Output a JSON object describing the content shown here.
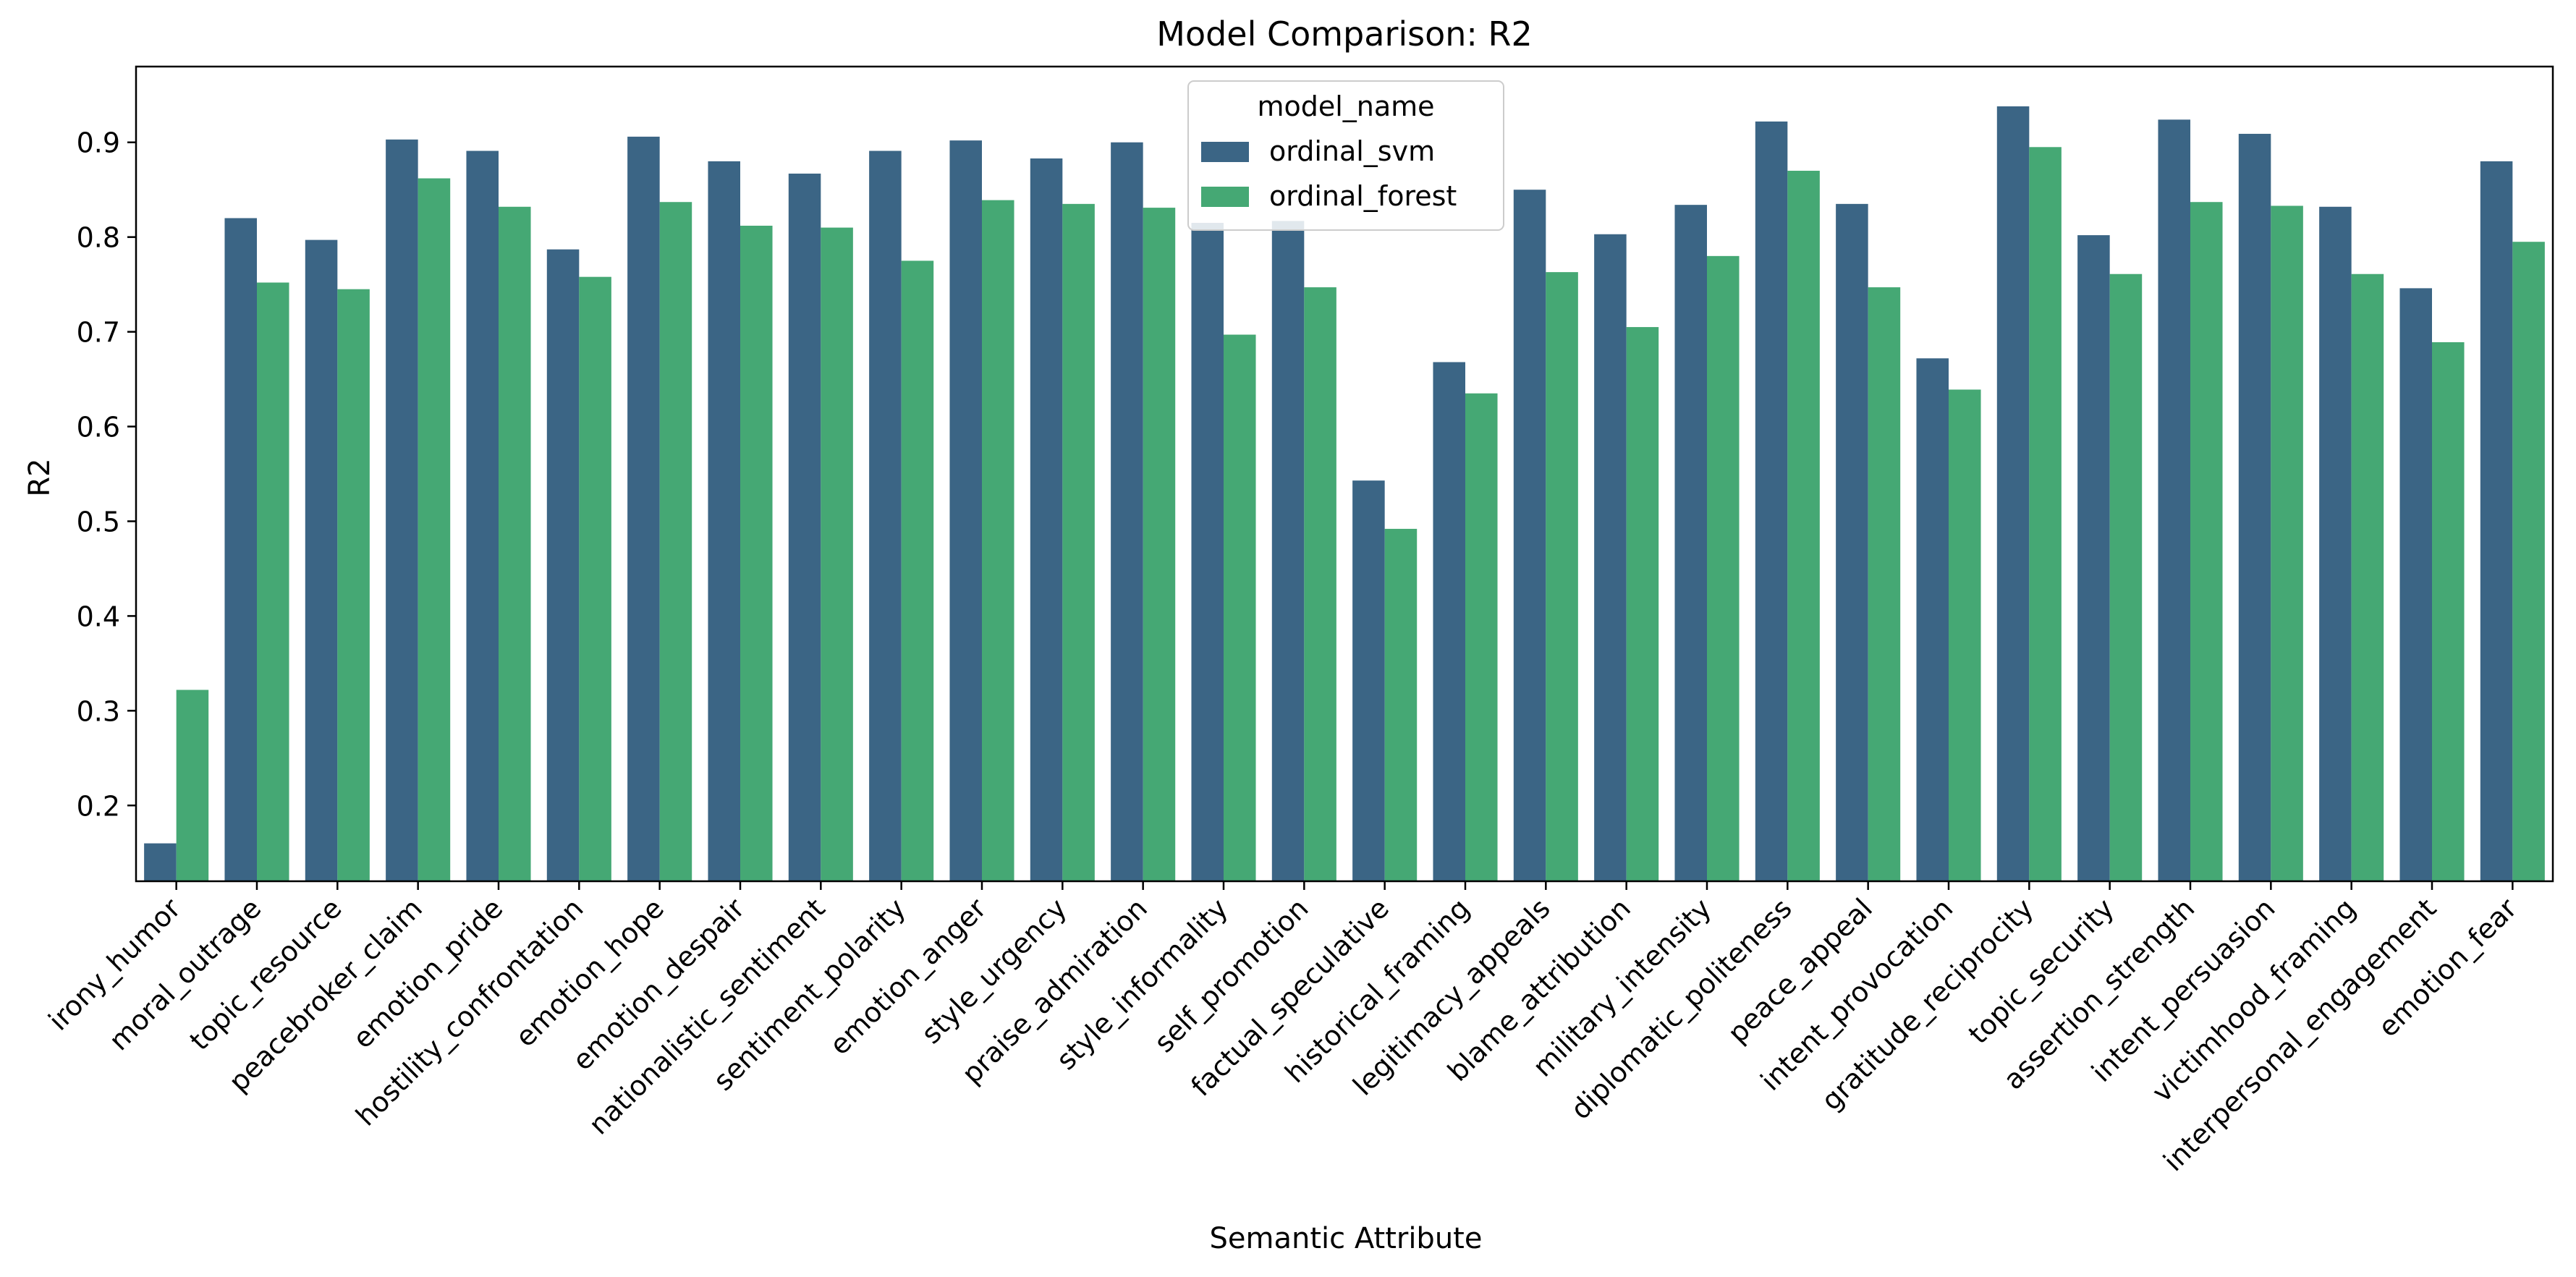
{
  "chart_data": {
    "type": "bar",
    "title": "Model Comparison: R2",
    "xlabel": "Semantic Attribute",
    "ylabel": "R2",
    "ylim": [
      0.12,
      0.98
    ],
    "yticks": [
      0.2,
      0.3,
      0.4,
      0.5,
      0.6,
      0.7,
      0.8,
      0.9
    ],
    "grid": false,
    "legend": {
      "title": "model_name",
      "placement": "top-center"
    },
    "categories": [
      "irony_humor",
      "moral_outrage",
      "topic_resource",
      "peacebroker_claim",
      "emotion_pride",
      "hostility_confrontation",
      "emotion_hope",
      "emotion_despair",
      "nationalistic_sentiment",
      "sentiment_polarity",
      "emotion_anger",
      "style_urgency",
      "praise_admiration",
      "style_informality",
      "self_promotion",
      "factual_speculative",
      "historical_framing",
      "legitimacy_appeals",
      "blame_attribution",
      "military_intensity",
      "diplomatic_politeness",
      "peace_appeal",
      "intent_provocation",
      "gratitude_reciprocity",
      "topic_security",
      "assertion_strength",
      "intent_persuasion",
      "victimhood_framing",
      "interpersonal_engagement",
      "emotion_fear"
    ],
    "series": [
      {
        "name": "ordinal_svm",
        "color": "#3b6585",
        "values": [
          0.16,
          0.82,
          0.797,
          0.903,
          0.891,
          0.787,
          0.906,
          0.88,
          0.867,
          0.891,
          0.902,
          0.883,
          0.9,
          0.815,
          0.817,
          0.543,
          0.668,
          0.85,
          0.803,
          0.834,
          0.922,
          0.835,
          0.672,
          0.938,
          0.802,
          0.924,
          0.909,
          0.832,
          0.746,
          0.88
        ]
      },
      {
        "name": "ordinal_forest",
        "color": "#45a874",
        "values": [
          0.322,
          0.752,
          0.745,
          0.862,
          0.832,
          0.758,
          0.837,
          0.812,
          0.81,
          0.775,
          0.839,
          0.835,
          0.831,
          0.697,
          0.747,
          0.492,
          0.635,
          0.763,
          0.705,
          0.78,
          0.87,
          0.747,
          0.639,
          0.895,
          0.761,
          0.837,
          0.833,
          0.761,
          0.689,
          0.795
        ]
      }
    ]
  }
}
